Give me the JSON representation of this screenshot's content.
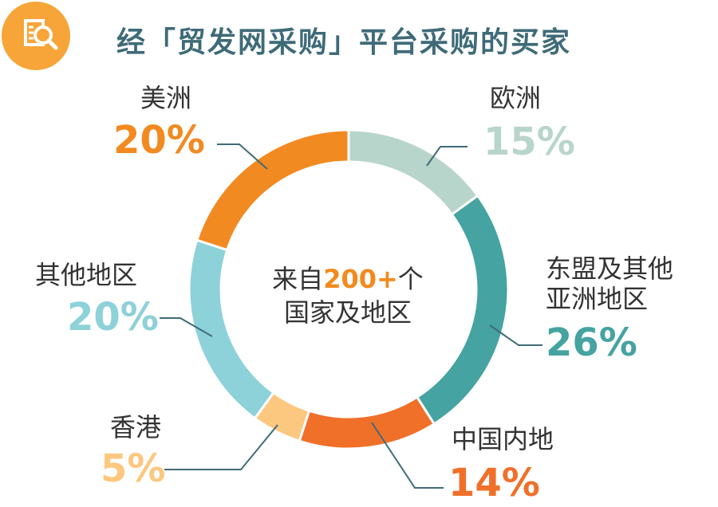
{
  "header": {
    "title": "经「贸发网采购」平台采购的买家",
    "icon": "magnifier-document-icon"
  },
  "center": {
    "line1_prefix": "来自",
    "line1_highlight": "200+",
    "line1_suffix": "个",
    "line2": "国家及地区"
  },
  "colors": {
    "header_icon_bg": "#f7a538",
    "title": "#3f6b78",
    "leader_line": "#3f6b78",
    "highlight": "#f28a1e"
  },
  "chart_data": {
    "type": "pie",
    "donut": true,
    "start_angle_deg": 0,
    "direction": "clockwise",
    "slices": [
      {
        "key": "europe",
        "label": "欧洲",
        "value": 15,
        "display": "15%",
        "color": "#b8d5cc"
      },
      {
        "key": "asean",
        "label": "东盟及其他\n亚洲地区",
        "value": 26,
        "display": "26%",
        "color": "#45a3a1"
      },
      {
        "key": "mainland",
        "label": "中国内地",
        "value": 14,
        "display": "14%",
        "color": "#f07029"
      },
      {
        "key": "hongkong",
        "label": "香港",
        "value": 5,
        "display": "5%",
        "color": "#fcc77f"
      },
      {
        "key": "others",
        "label": "其他地区",
        "value": 20,
        "display": "20%",
        "color": "#8dd1d9"
      },
      {
        "key": "americas",
        "label": "美洲",
        "value": 20,
        "display": "20%",
        "color": "#f28a22"
      }
    ]
  }
}
